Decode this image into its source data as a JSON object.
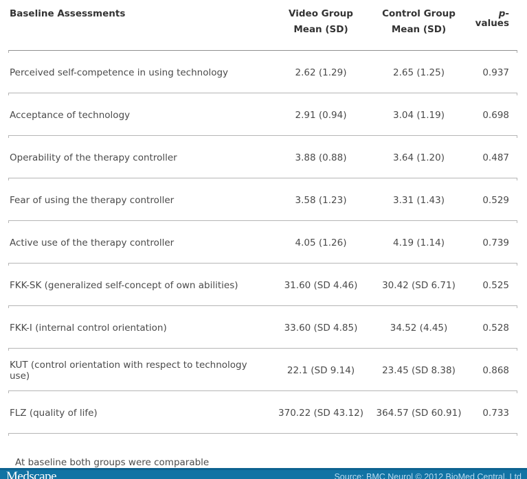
{
  "table": {
    "headers": {
      "col1": "Baseline Assessments",
      "col2_line1": "Video Group",
      "col2_line2": "Mean (SD)",
      "col3_line1": "Control Group",
      "col3_line2": "Mean (SD)",
      "pvalues_italic": "p",
      "pvalues_rest": "-values"
    },
    "rows": [
      {
        "label": "Perceived self-competence in using technology",
        "video": "2.62 (1.29)",
        "control": "2.65 (1.25)",
        "p": "0.937"
      },
      {
        "label": "Acceptance of technology",
        "video": "2.91 (0.94)",
        "control": "3.04 (1.19)",
        "p": "0.698"
      },
      {
        "label": "Operability of the therapy controller",
        "video": "3.88 (0.88)",
        "control": "3.64 (1.20)",
        "p": "0.487"
      },
      {
        "label": "Fear of using the therapy controller",
        "video": "3.58 (1.23)",
        "control": "3.31 (1.43)",
        "p": "0.529"
      },
      {
        "label": "Active use of the therapy controller",
        "video": "4.05 (1.26)",
        "control": "4.19 (1.14)",
        "p": "0.739"
      },
      {
        "label": "FKK-SK (generalized self-concept of own abilities)",
        "video": "31.60 (SD 4.46)",
        "control": "30.42 (SD 6.71)",
        "p": "0.525"
      },
      {
        "label": "FKK-I (internal control orientation)",
        "video": "33.60 (SD 4.85)",
        "control": "34.52 (4.45)",
        "p": "0.528"
      },
      {
        "label": "KUT (control orientation with respect to technology use)",
        "video": "22.1 (SD 9.14)",
        "control": "23.45 (SD 8.38)",
        "p": "0.868"
      },
      {
        "label": "FLZ (quality of life)",
        "video": "370.22 (SD 43.12)",
        "control": "364.57 (SD 60.91)",
        "p": "0.733"
      }
    ],
    "footnote": "At baseline both groups were comparable"
  },
  "chart_data": {
    "type": "table",
    "title": "Baseline Assessments",
    "columns": [
      "Baseline Assessments",
      "Video Group Mean (SD)",
      "Control Group Mean (SD)",
      "p-values"
    ],
    "rows": [
      [
        "Perceived self-competence in using technology",
        "2.62 (1.29)",
        "2.65 (1.25)",
        "0.937"
      ],
      [
        "Acceptance of technology",
        "2.91 (0.94)",
        "3.04 (1.19)",
        "0.698"
      ],
      [
        "Operability of the therapy controller",
        "3.88 (0.88)",
        "3.64 (1.20)",
        "0.487"
      ],
      [
        "Fear of using the therapy controller",
        "3.58 (1.23)",
        "3.31 (1.43)",
        "0.529"
      ],
      [
        "Active use of the therapy controller",
        "4.05 (1.26)",
        "4.19 (1.14)",
        "0.739"
      ],
      [
        "FKK-SK (generalized self-concept of own abilities)",
        "31.60 (SD 4.46)",
        "30.42 (SD 6.71)",
        "0.525"
      ],
      [
        "FKK-I (internal control orientation)",
        "33.60 (SD 4.85)",
        "34.52 (4.45)",
        "0.528"
      ],
      [
        "KUT (control orientation with respect to technology use)",
        "22.1 (SD 9.14)",
        "23.45 (SD 8.38)",
        "0.868"
      ],
      [
        "FLZ (quality of life)",
        "370.22 (SD 43.12)",
        "364.57 (SD 60.91)",
        "0.733"
      ]
    ]
  },
  "footer_bar": {
    "brand": "Medscape",
    "source": "Source: BMC Neurol © 2012 BioMed Central, Ltd",
    "bar_color": "#1173a4",
    "bar_top_color": "#0d6290",
    "source_text_color": "#b8dcf2"
  }
}
